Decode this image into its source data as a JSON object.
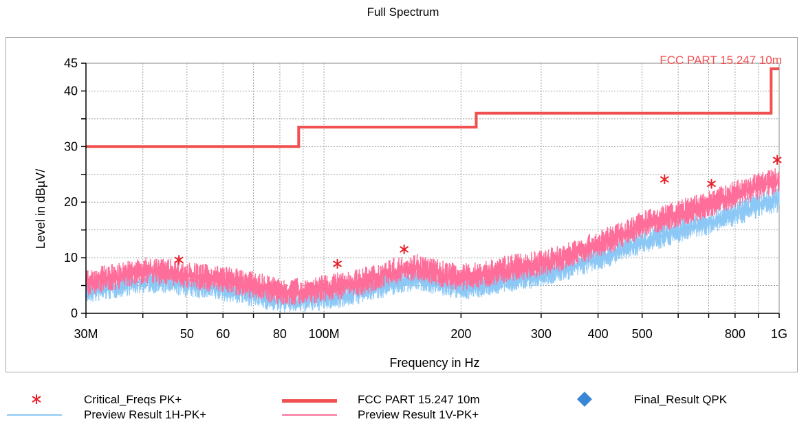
{
  "chart_data": {
    "type": "line",
    "title": "Full Spectrum",
    "xlabel": "Frequency in Hz",
    "ylabel": "Level in dBµV/",
    "xscale": "log",
    "xlim": [
      30000000,
      1000000000
    ],
    "ylim": [
      0,
      45
    ],
    "grid": true,
    "x_ticks": [
      {
        "value": 30000000,
        "label": "30M"
      },
      {
        "value": 50000000,
        "label": "50"
      },
      {
        "value": 60000000,
        "label": "60"
      },
      {
        "value": 80000000,
        "label": "80"
      },
      {
        "value": 100000000,
        "label": "100M"
      },
      {
        "value": 200000000,
        "label": "200"
      },
      {
        "value": 300000000,
        "label": "300"
      },
      {
        "value": 400000000,
        "label": "400"
      },
      {
        "value": 500000000,
        "label": "500"
      },
      {
        "value": 800000000,
        "label": "800"
      },
      {
        "value": 1000000000,
        "label": "1G"
      }
    ],
    "y_ticks": [
      {
        "value": 0,
        "label": "0"
      },
      {
        "value": 10,
        "label": "10"
      },
      {
        "value": 20,
        "label": "20"
      },
      {
        "value": 30,
        "label": "30"
      },
      {
        "value": 40,
        "label": "40"
      },
      {
        "value": 45,
        "label": "45"
      }
    ],
    "limit_line": {
      "name": "FCC PART 15.247 10m",
      "color": "#f05050",
      "x": [
        30000000,
        88000000,
        88000000,
        216000000,
        216000000,
        960000000,
        960000000,
        1000000000
      ],
      "y": [
        30,
        30,
        33.5,
        33.5,
        36,
        36,
        44,
        44
      ]
    },
    "critical_freqs": {
      "name": "Critical_Freqs PK+",
      "color": "#e8222a",
      "x": [
        48000000,
        107000000,
        150000000,
        560000000,
        710000000,
        990000000
      ],
      "y": [
        9.6,
        8.9,
        11.5,
        24.1,
        23.3,
        27.6
      ]
    },
    "preview_1h": {
      "name": "Preview Result 1H-PK+",
      "color": "#8cc8f5",
      "x": [
        30000000,
        35000000,
        40000000,
        46000000,
        50000000,
        60000000,
        70000000,
        80000000,
        90000000,
        100000000,
        120000000,
        140000000,
        160000000,
        180000000,
        200000000,
        220000000,
        250000000,
        300000000,
        350000000,
        400000000,
        450000000,
        500000000,
        600000000,
        700000000,
        800000000,
        900000000,
        1000000000
      ],
      "y": [
        3.8,
        4.8,
        5.8,
        5.6,
        5.0,
        4.3,
        3.3,
        2.2,
        2.2,
        2.6,
        3.8,
        5.3,
        6.3,
        5.3,
        4.5,
        5.0,
        5.8,
        6.8,
        8.3,
        9.8,
        11.3,
        12.8,
        14.8,
        16.3,
        17.8,
        19.3,
        20.3
      ]
    },
    "preview_1v": {
      "name": "Preview Result 1V-PK+",
      "color": "#ff6e9a",
      "x": [
        30000000,
        35000000,
        40000000,
        46000000,
        50000000,
        60000000,
        70000000,
        80000000,
        90000000,
        100000000,
        120000000,
        140000000,
        160000000,
        180000000,
        200000000,
        220000000,
        250000000,
        300000000,
        350000000,
        400000000,
        450000000,
        500000000,
        600000000,
        700000000,
        800000000,
        900000000,
        1000000000
      ],
      "y": [
        5.5,
        6.5,
        7.5,
        7.3,
        6.7,
        6.0,
        5.0,
        3.8,
        3.8,
        4.3,
        5.5,
        7.3,
        8.3,
        7.0,
        6.3,
        6.8,
        7.8,
        8.8,
        10.5,
        12.3,
        14.0,
        15.8,
        17.8,
        19.5,
        21.3,
        22.8,
        24.0
      ]
    },
    "final_result": {
      "name": "Final_Result QPK",
      "color": "#3a86d6"
    }
  },
  "legend": {
    "critical": "Critical_Freqs PK+",
    "limit": "FCC PART 15.247 10m",
    "final": "Final_Result QPK",
    "preview_h": "Preview Result 1H-PK+",
    "preview_v": "Preview Result 1V-PK+"
  }
}
